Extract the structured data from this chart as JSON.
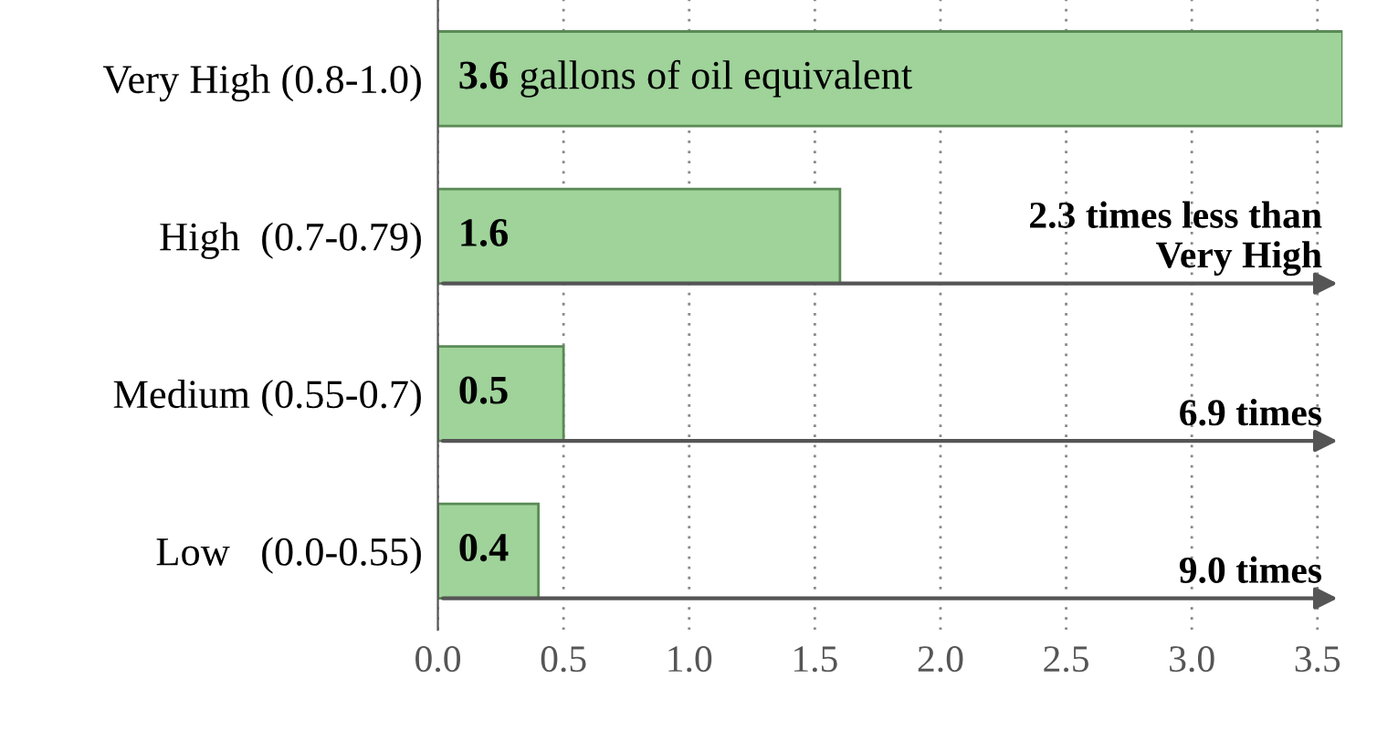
{
  "chart_data": {
    "type": "bar",
    "orientation": "horizontal",
    "categories": [
      "Very High (0.8-1.0)",
      "High  (0.7-0.79)",
      "Medium (0.55-0.7)",
      "Low   (0.0-0.55)"
    ],
    "values": [
      3.6,
      1.6,
      0.5,
      0.4
    ],
    "value_labels": [
      "3.6 gallons of oil equivalent",
      "1.6",
      "0.5",
      "0.4"
    ],
    "color": "#9fd39a",
    "xlim": [
      0,
      3.6
    ],
    "xticks": [
      {
        "value": 0,
        "label": "0.0"
      },
      {
        "value": 0.5,
        "label": "0.5"
      },
      {
        "value": 1,
        "label": "1.0"
      },
      {
        "value": 1.5,
        "label": "1.5"
      },
      {
        "value": 2,
        "label": "2.0"
      },
      {
        "value": 2.5,
        "label": "2.5"
      },
      {
        "value": 3,
        "label": "3.0"
      },
      {
        "value": 3.5,
        "label": "3.5"
      }
    ],
    "grid": "x",
    "annotations": [
      "2.3 times less than\nVery High",
      "6.9 times",
      "9.0 times"
    ]
  }
}
